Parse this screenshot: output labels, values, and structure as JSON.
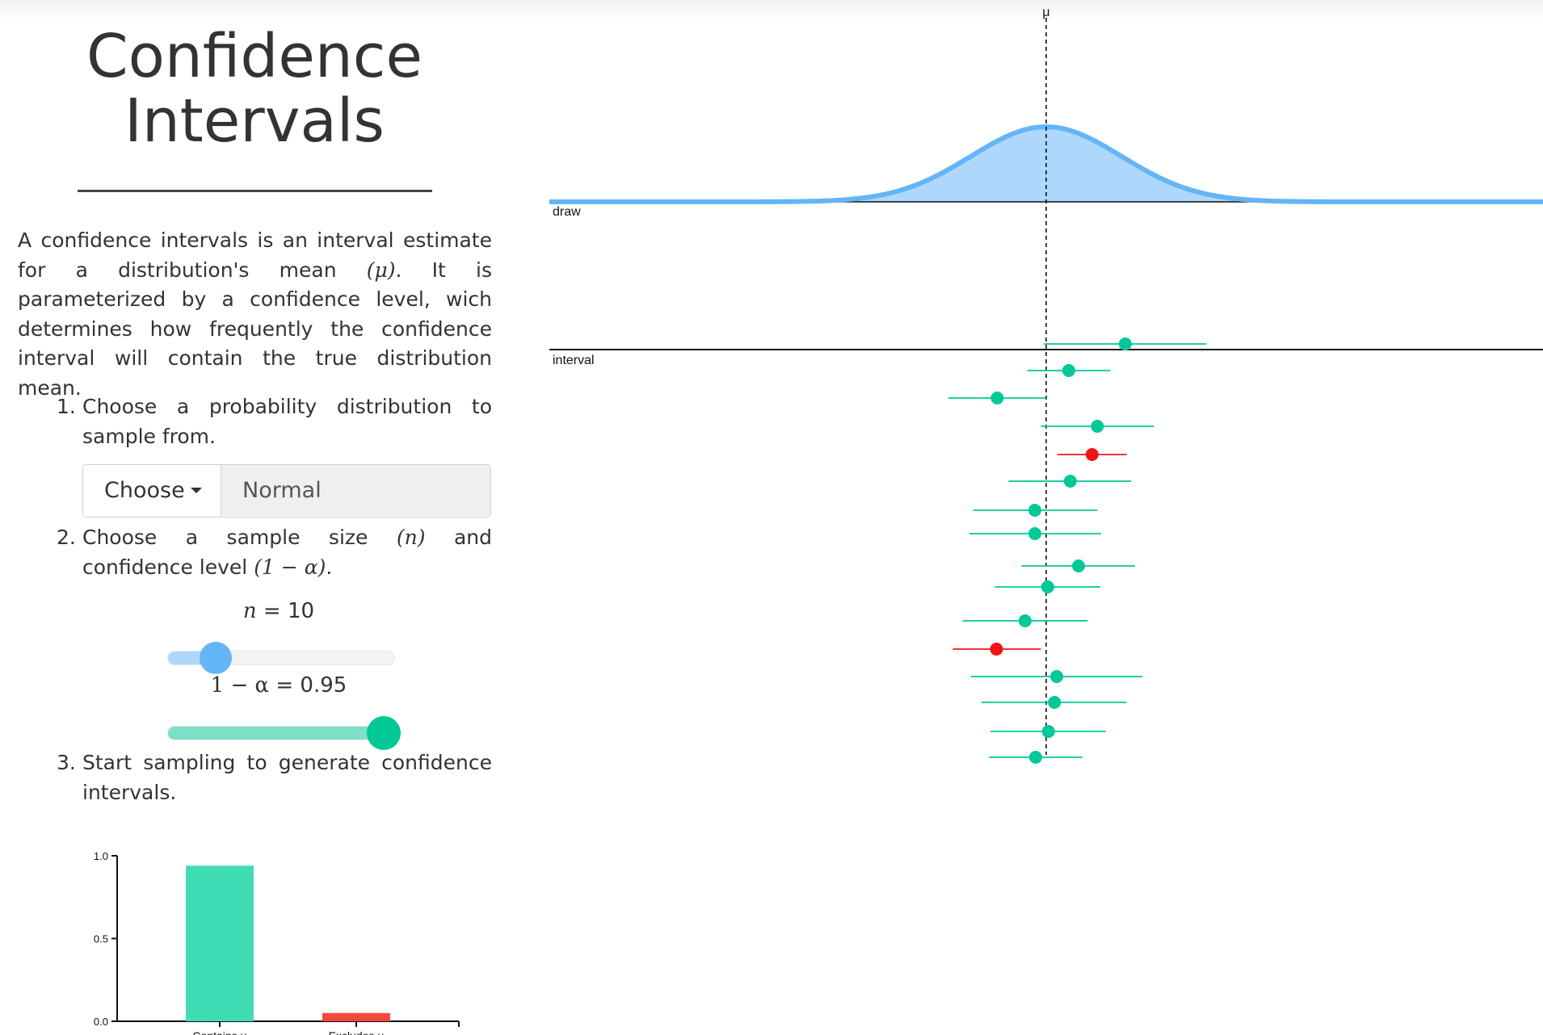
{
  "page": {
    "title": "Confidence Intervals",
    "intro_parts": [
      "A confidence intervals is an interval estimate for a distribution's mean ",
      "(μ)",
      ". It is parameterized by a confidence level, wich determines how frequently the confidence interval will contain the true distribution mean."
    ]
  },
  "steps": {
    "step1_num": "1.",
    "step1": "Choose a probability distribution to sample from.",
    "step2_num": "2.",
    "step2_a": "Choose a sample size ",
    "step2_b": "(n)",
    "step2_c": " and confidence level ",
    "step2_d": "(1 − α)",
    "step2_e": ".",
    "step3_num": "3.",
    "step3": "Start sampling to generate confidence intervals."
  },
  "chooser": {
    "button_label": "Choose",
    "selected_value": "Normal"
  },
  "sliders": {
    "n_label_var": "n",
    "n_label_eq": " = 10",
    "n_min": 1,
    "n_max": 50,
    "n_value": 10,
    "alpha_label_var": "1 − α",
    "alpha_label_eq": " = 0.95",
    "alpha_value_fraction": 0.95
  },
  "colors": {
    "distribution_fill": "#aed8fb",
    "distribution_stroke": "#64b5f6",
    "contains": "#00c896",
    "excludes": "#f21414",
    "bar_contains": "#40dcb5",
    "bar_excludes": "#f4473f"
  },
  "chart_data": [
    {
      "type": "area",
      "labels": {
        "mu": "μ",
        "draw": "draw",
        "interval": "interval"
      },
      "distribution": "normal",
      "mu": 0,
      "sd": 1,
      "xlim": [
        -6.6,
        6.6
      ],
      "intervals": [
        {
          "lo": -0.03,
          "hi": 2.13,
          "center": 1.05,
          "contains": true
        },
        {
          "lo": -0.25,
          "hi": 0.85,
          "center": 0.3,
          "contains": true
        },
        {
          "lo": -1.3,
          "hi": 0.0,
          "center": -0.65,
          "contains": true
        },
        {
          "lo": -0.07,
          "hi": 1.43,
          "center": 0.68,
          "contains": true
        },
        {
          "lo": 0.15,
          "hi": 1.07,
          "center": 0.61,
          "contains": false
        },
        {
          "lo": -0.5,
          "hi": 1.13,
          "center": 0.32,
          "contains": true
        },
        {
          "lo": -0.97,
          "hi": 0.68,
          "center": -0.15,
          "contains": true
        },
        {
          "lo": -1.02,
          "hi": 0.73,
          "center": -0.15,
          "contains": true
        },
        {
          "lo": -0.33,
          "hi": 1.18,
          "center": 0.43,
          "contains": true
        },
        {
          "lo": -0.68,
          "hi": 0.72,
          "center": 0.02,
          "contains": true
        },
        {
          "lo": -1.11,
          "hi": 0.55,
          "center": -0.28,
          "contains": true
        },
        {
          "lo": -1.24,
          "hi": -0.07,
          "center": -0.66,
          "contains": false
        },
        {
          "lo": -1.0,
          "hi": 1.28,
          "center": 0.14,
          "contains": true
        },
        {
          "lo": -0.86,
          "hi": 1.07,
          "center": 0.11,
          "contains": true
        },
        {
          "lo": -0.74,
          "hi": 0.79,
          "center": 0.03,
          "contains": true
        },
        {
          "lo": -0.76,
          "hi": 0.48,
          "center": -0.14,
          "contains": true
        }
      ]
    },
    {
      "type": "bar",
      "categories": [
        "Contains μ",
        "Excludes μ"
      ],
      "values": [
        0.94,
        0.05
      ],
      "ylim": [
        0,
        1
      ],
      "yticks": [
        "0.0",
        "0.5",
        "1.0"
      ]
    }
  ]
}
